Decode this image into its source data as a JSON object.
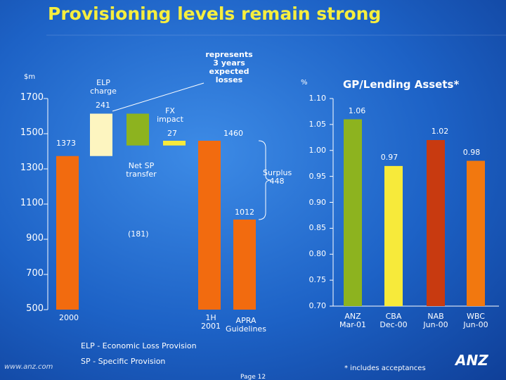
{
  "title": "Provisioning levels remain strong",
  "footnotes": [
    "ELP - Economic Loss Provision",
    "SP - Specific Provision"
  ],
  "note": "* includes acceptances",
  "page": "Page 12",
  "url": "www.anz.com",
  "logo": "ANZ",
  "chart_data": [
    {
      "type": "waterfall",
      "ylabel": "$m",
      "categories": [
        "2000",
        null,
        null,
        null,
        "1H 2001",
        "APRA Guidelines"
      ],
      "values": [
        1373,
        241,
        -181,
        27,
        1460,
        1012
      ],
      "value_labels": [
        "1373",
        "241",
        "(181)",
        "27",
        "1460",
        "1012"
      ],
      "kinds": [
        "total",
        "delta",
        "delta",
        "delta",
        "total",
        "total"
      ],
      "colors": [
        "#f26b0f",
        "#fdf5c0",
        "#8db31f",
        "#f7ea3a",
        "#f26b0f",
        "#f26b0f"
      ],
      "ylim": [
        500,
        1700
      ],
      "yticks": [
        500,
        700,
        900,
        1100,
        1300,
        1500,
        1700
      ],
      "annotations": [
        "ELP\ncharge",
        "Net SP\ntransfer",
        "FX\nimpact",
        "represents\n3 years\nexpected\nlosses",
        "Surplus\n448"
      ]
    },
    {
      "type": "bar",
      "title": "GP/Lending Assets*",
      "ylabel": "%",
      "categories": [
        "ANZ\nMar-01",
        "CBA\nDec-00",
        "NAB\nJun-00",
        "WBC\nJun-00"
      ],
      "values": [
        1.06,
        0.97,
        1.02,
        0.98
      ],
      "colors": [
        "#8db31f",
        "#f7ea3a",
        "#c83a10",
        "#f2780f"
      ],
      "ylim": [
        0.7,
        1.1
      ],
      "yticks": [
        {
          "value": 0.7,
          "label": "0.70"
        },
        0.75,
        {
          "value": 0.8,
          "label": "0.80"
        },
        0.85,
        {
          "value": 0.9,
          "label": "0.90"
        },
        0.95,
        {
          "value": 1.0,
          "label": "1.00"
        },
        1.05,
        {
          "value": 1.1,
          "label": "1.10"
        }
      ]
    }
  ]
}
